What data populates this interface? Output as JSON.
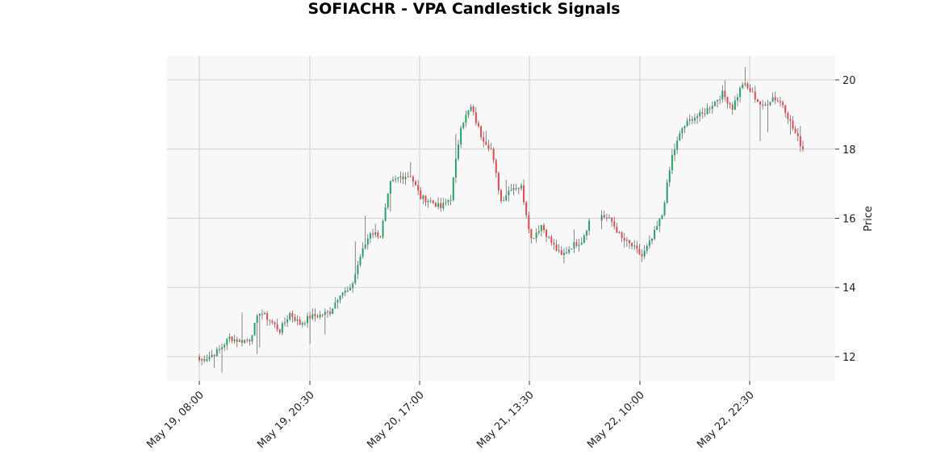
{
  "chart_data": {
    "type": "candlestick",
    "title": "SOFIACHR - VPA Candlestick Signals",
    "xlabel": "",
    "ylabel": "Price",
    "ylim": [
      11.3,
      20.7
    ],
    "grid": true,
    "x_tick_labels": [
      "May 19, 08:00",
      "May 19, 20:30",
      "May 20, 17:00",
      "May 21, 13:30",
      "May 22, 10:00",
      "May 22, 22:30"
    ],
    "y_ticks": [
      12,
      14,
      16,
      18,
      20
    ],
    "colors": {
      "up": "#26a269",
      "down": "#e5484d",
      "wick": "#555555",
      "plot_background": "#f8f8f8",
      "grid": "#d0d0d0"
    },
    "anchor_closes": [
      11.9,
      12.0,
      12.2,
      12.55,
      12.45,
      12.5,
      13.3,
      13.05,
      12.75,
      13.25,
      12.95,
      13.15,
      13.2,
      13.3,
      13.85,
      13.9,
      14.9,
      15.6,
      15.5,
      17.0,
      17.2,
      17.25,
      16.6,
      16.5,
      16.3,
      16.6,
      18.7,
      19.2,
      18.4,
      18.0,
      16.5,
      16.9,
      16.9,
      15.4,
      15.8,
      15.3,
      14.9,
      15.2,
      15.35,
      16.1,
      15.9,
      15.4,
      15.2,
      14.9,
      15.4,
      16.1,
      17.8,
      18.6,
      18.9,
      19.0,
      19.3,
      19.6,
      19.2,
      19.9,
      19.6,
      19.2,
      19.5,
      19.3,
      18.6,
      18.0
    ],
    "anchor_gap_after": [
      38
    ],
    "candles_per_segment": 4
  }
}
